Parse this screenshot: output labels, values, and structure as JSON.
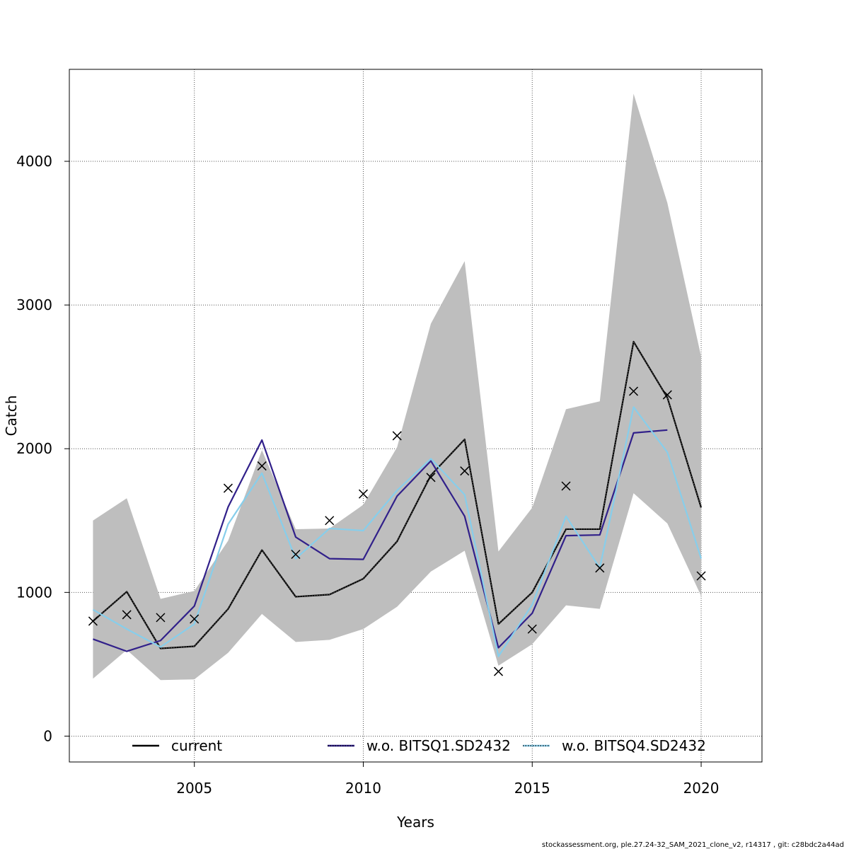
{
  "chart_data": {
    "type": "line",
    "xlabel": "Years",
    "ylabel": "Catch",
    "xlim": [
      2001.3,
      2021.8
    ],
    "ylim": [
      -180,
      4640
    ],
    "x_ticks": [
      2005,
      2010,
      2015,
      2020
    ],
    "y_ticks": [
      0,
      1000,
      2000,
      3000,
      4000
    ],
    "grid": true,
    "legend_position": "bottom",
    "x": [
      2002,
      2003,
      2004,
      2005,
      2006,
      2007,
      2008,
      2009,
      2010,
      2011,
      2012,
      2013,
      2014,
      2015,
      2016,
      2017,
      2018,
      2019,
      2020
    ],
    "confidence_band": {
      "lower": [
        400,
        600,
        390,
        395,
        580,
        850,
        655,
        670,
        745,
        900,
        1145,
        1290,
        490,
        640,
        910,
        885,
        1690,
        1480,
        975
      ],
      "upper": [
        1500,
        1655,
        955,
        1010,
        1360,
        1990,
        1440,
        1445,
        1610,
        2010,
        2870,
        3305,
        1285,
        1590,
        2275,
        2330,
        4470,
        3710,
        2640
      ]
    },
    "series": [
      {
        "name": "current",
        "color": "#000000",
        "values": [
          800,
          1005,
          610,
          625,
          885,
          1295,
          970,
          985,
          1095,
          1355,
          1815,
          2065,
          780,
          1000,
          1440,
          1440,
          2745,
          2355,
          1590
        ]
      },
      {
        "name": "w.o. BITSQ1.SD2432",
        "color": "#31208a",
        "values": [
          675,
          590,
          665,
          905,
          1595,
          2060,
          1385,
          1235,
          1230,
          1670,
          1915,
          1530,
          615,
          855,
          1395,
          1400,
          2110,
          2130,
          null
        ]
      },
      {
        "name": "w.o. BITSQ4.SD2432",
        "color": "#87ceeb",
        "values": [
          880,
          745,
          620,
          780,
          1475,
          1830,
          1235,
          1445,
          1430,
          1710,
          1930,
          1680,
          555,
          915,
          1530,
          1170,
          2290,
          1975,
          1235
        ]
      }
    ],
    "observed": {
      "marker": "x",
      "values": [
        800,
        845,
        825,
        815,
        1725,
        1880,
        1265,
        1500,
        1685,
        2090,
        1800,
        1845,
        450,
        745,
        1740,
        1170,
        2400,
        2375,
        1115
      ]
    }
  },
  "footer": "stockassessment.org, ple.27.24-32_SAM_2021_clone_v2, r14317 , git: c28bdc2a44ad"
}
